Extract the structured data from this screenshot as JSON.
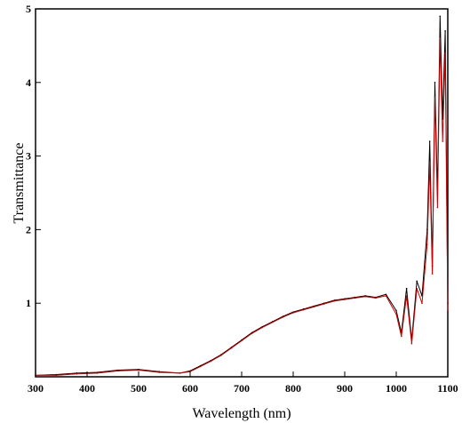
{
  "chart_data": {
    "type": "line",
    "title": "",
    "xlabel": "Wavelength (nm)",
    "ylabel": "Transmittance",
    "xlim": [
      300,
      1100
    ],
    "ylim": [
      0,
      5
    ],
    "xticks": [
      "300",
      "400",
      "500",
      "600",
      "700",
      "800",
      "900",
      "1000",
      "1100"
    ],
    "yticks": [
      "1",
      "2",
      "3",
      "4",
      "5"
    ],
    "grid": false,
    "series": [
      {
        "color": "#000000",
        "x": [
          300,
          340,
          380,
          420,
          460,
          500,
          540,
          580,
          600,
          620,
          640,
          660,
          680,
          700,
          720,
          740,
          760,
          780,
          800,
          820,
          840,
          860,
          880,
          900,
          920,
          940,
          960,
          980,
          1000,
          1010,
          1020,
          1030,
          1040,
          1050,
          1060,
          1065,
          1070,
          1075,
          1080,
          1085,
          1090,
          1095,
          1100
        ],
        "y": [
          0.02,
          0.03,
          0.05,
          0.06,
          0.09,
          0.1,
          0.07,
          0.05,
          0.08,
          0.15,
          0.22,
          0.3,
          0.4,
          0.5,
          0.6,
          0.68,
          0.75,
          0.82,
          0.88,
          0.92,
          0.96,
          1.0,
          1.04,
          1.06,
          1.08,
          1.1,
          1.08,
          1.12,
          0.9,
          0.6,
          1.2,
          0.5,
          1.3,
          1.1,
          2.0,
          3.2,
          1.5,
          4.0,
          2.5,
          4.9,
          3.5,
          4.7,
          1.0
        ]
      },
      {
        "color": "#cc0000",
        "x": [
          300,
          340,
          380,
          420,
          460,
          500,
          540,
          580,
          600,
          620,
          640,
          660,
          680,
          700,
          720,
          740,
          760,
          780,
          800,
          820,
          840,
          860,
          880,
          900,
          920,
          940,
          960,
          980,
          1000,
          1010,
          1020,
          1030,
          1040,
          1050,
          1060,
          1065,
          1070,
          1075,
          1080,
          1085,
          1090,
          1095,
          1100
        ],
        "y": [
          0.02,
          0.02,
          0.04,
          0.05,
          0.08,
          0.09,
          0.06,
          0.05,
          0.07,
          0.14,
          0.21,
          0.29,
          0.39,
          0.49,
          0.59,
          0.67,
          0.74,
          0.81,
          0.87,
          0.91,
          0.95,
          0.99,
          1.03,
          1.05,
          1.07,
          1.09,
          1.07,
          1.1,
          0.85,
          0.55,
          1.1,
          0.45,
          1.2,
          1.0,
          1.8,
          2.9,
          1.4,
          3.8,
          2.3,
          4.6,
          3.2,
          4.4,
          0.9
        ]
      }
    ]
  }
}
